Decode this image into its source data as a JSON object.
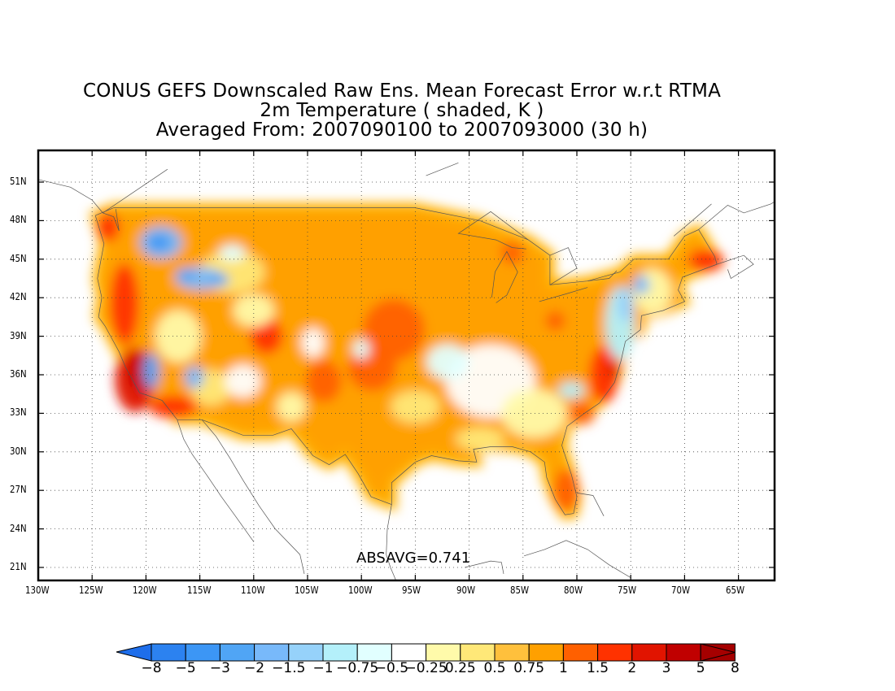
{
  "title": {
    "line1": "CONUS GEFS Downscaled Raw Ens. Mean Forecast Error w.r.t RTMA",
    "line2": "2m Temperature ( shaded, K )",
    "line3": "Averaged From: 2007090100 to 2007093000 (30 h)"
  },
  "annotation": "ABSAVG=0.741",
  "map": {
    "lat_ticks": [
      "51N",
      "48N",
      "45N",
      "42N",
      "39N",
      "36N",
      "33N",
      "30N",
      "27N",
      "24N",
      "21N"
    ],
    "lon_ticks": [
      "130W",
      "125W",
      "120W",
      "115W",
      "110W",
      "105W",
      "100W",
      "95W",
      "90W",
      "85W",
      "80W",
      "75W",
      "70W",
      "65W"
    ],
    "lon_range": [
      -130,
      -62
    ],
    "lat_range": [
      19,
      52.5
    ],
    "grid": "dotted"
  },
  "colorbar": {
    "labels": [
      "-8",
      "-5",
      "-3",
      "-2",
      "-1.5",
      "-1",
      "-0.75",
      "-0.5",
      "-0.25",
      "0.25",
      "0.5",
      "0.75",
      "1",
      "1.5",
      "2",
      "3",
      "5",
      "8"
    ],
    "colors": [
      "#1e6eeb",
      "#2c82f0",
      "#3c96f5",
      "#50a5f5",
      "#78b9fa",
      "#96d2fa",
      "#b4f0fa",
      "#e1ffff",
      "#ffffff",
      "#fffaaa",
      "#ffe878",
      "#ffc03c",
      "#ffa000",
      "#ff6000",
      "#ff3200",
      "#e11400",
      "#c00000",
      "#a50000"
    ]
  }
}
